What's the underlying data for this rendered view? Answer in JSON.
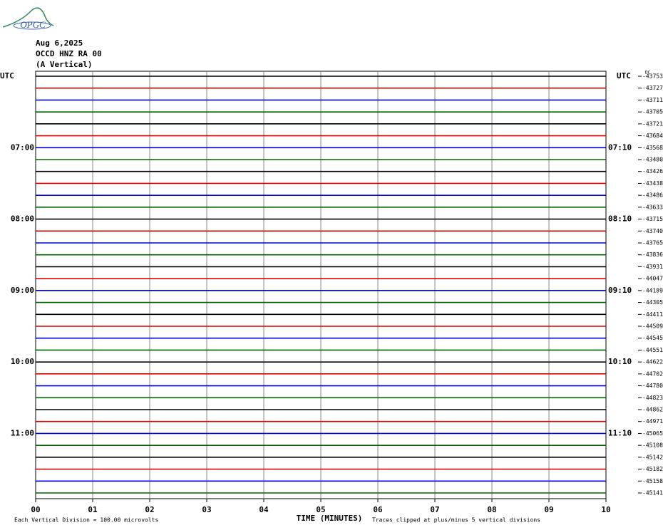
{
  "logo": "OPGC",
  "header": {
    "date": "Aug 6,2025",
    "station": "OCCD HNZ RA 00",
    "component": "(A Vertical)"
  },
  "dc_label": "DC",
  "rows": [
    {
      "left": "UTC",
      "right": "UTC",
      "offset": "-43753",
      "color": "#000000"
    },
    {
      "left": null,
      "right": null,
      "offset": "-43727",
      "color": "#e00000"
    },
    {
      "left": null,
      "right": null,
      "offset": "-43711",
      "color": "#0000e0"
    },
    {
      "left": null,
      "right": null,
      "offset": "-43705",
      "color": "#006400"
    },
    {
      "left": null,
      "right": null,
      "offset": "-43721",
      "color": "#000000"
    },
    {
      "left": null,
      "right": null,
      "offset": "-43684",
      "color": "#e00000"
    },
    {
      "left": "07:00",
      "right": "07:10",
      "offset": "-43568",
      "color": "#0000e0"
    },
    {
      "left": null,
      "right": null,
      "offset": "-43480",
      "color": "#006400"
    },
    {
      "left": null,
      "right": null,
      "offset": "-43426",
      "color": "#000000"
    },
    {
      "left": null,
      "right": null,
      "offset": "-43438",
      "color": "#e00000"
    },
    {
      "left": null,
      "right": null,
      "offset": "-43486",
      "color": "#0000e0"
    },
    {
      "left": null,
      "right": null,
      "offset": "-43633",
      "color": "#006400"
    },
    {
      "left": "08:00",
      "right": "08:10",
      "offset": "-43715",
      "color": "#000000"
    },
    {
      "left": null,
      "right": null,
      "offset": "-43740",
      "color": "#e00000"
    },
    {
      "left": null,
      "right": null,
      "offset": "-43765",
      "color": "#0000e0"
    },
    {
      "left": null,
      "right": null,
      "offset": "-43836",
      "color": "#006400"
    },
    {
      "left": null,
      "right": null,
      "offset": "-43931",
      "color": "#000000"
    },
    {
      "left": null,
      "right": null,
      "offset": "-44047",
      "color": "#e00000"
    },
    {
      "left": "09:00",
      "right": "09:10",
      "offset": "-44189",
      "color": "#0000e0"
    },
    {
      "left": null,
      "right": null,
      "offset": "-44305",
      "color": "#006400"
    },
    {
      "left": null,
      "right": null,
      "offset": "-44411",
      "color": "#000000"
    },
    {
      "left": null,
      "right": null,
      "offset": "-44509",
      "color": "#e00000"
    },
    {
      "left": null,
      "right": null,
      "offset": "-44545",
      "color": "#0000e0"
    },
    {
      "left": null,
      "right": null,
      "offset": "-44551",
      "color": "#006400"
    },
    {
      "left": "10:00",
      "right": "10:10",
      "offset": "-44622",
      "color": "#000000"
    },
    {
      "left": null,
      "right": null,
      "offset": "-44702",
      "color": "#e00000"
    },
    {
      "left": null,
      "right": null,
      "offset": "-44780",
      "color": "#0000e0"
    },
    {
      "left": null,
      "right": null,
      "offset": "-44823",
      "color": "#006400"
    },
    {
      "left": null,
      "right": null,
      "offset": "-44862",
      "color": "#000000"
    },
    {
      "left": null,
      "right": null,
      "offset": "-44971",
      "color": "#e00000"
    },
    {
      "left": "11:00",
      "right": "11:10",
      "offset": "-45065",
      "color": "#0000e0"
    },
    {
      "left": null,
      "right": null,
      "offset": "-45108",
      "color": "#006400"
    },
    {
      "left": null,
      "right": null,
      "offset": "-45142",
      "color": "#000000"
    },
    {
      "left": null,
      "right": null,
      "offset": "-45182",
      "color": "#e00000"
    },
    {
      "left": null,
      "right": null,
      "offset": "-45158",
      "color": "#0000e0"
    },
    {
      "left": null,
      "right": null,
      "offset": "-45141",
      "color": "#006400"
    }
  ],
  "x_axis": {
    "label": "TIME (MINUTES)",
    "ticks": [
      "00",
      "01",
      "02",
      "03",
      "04",
      "05",
      "06",
      "07",
      "08",
      "09",
      "10"
    ]
  },
  "footer": {
    "scale": "Each Vertical Division =  100.00 microvolts",
    "clip": "Traces clipped at plus/minus 5 vertical divisions"
  }
}
